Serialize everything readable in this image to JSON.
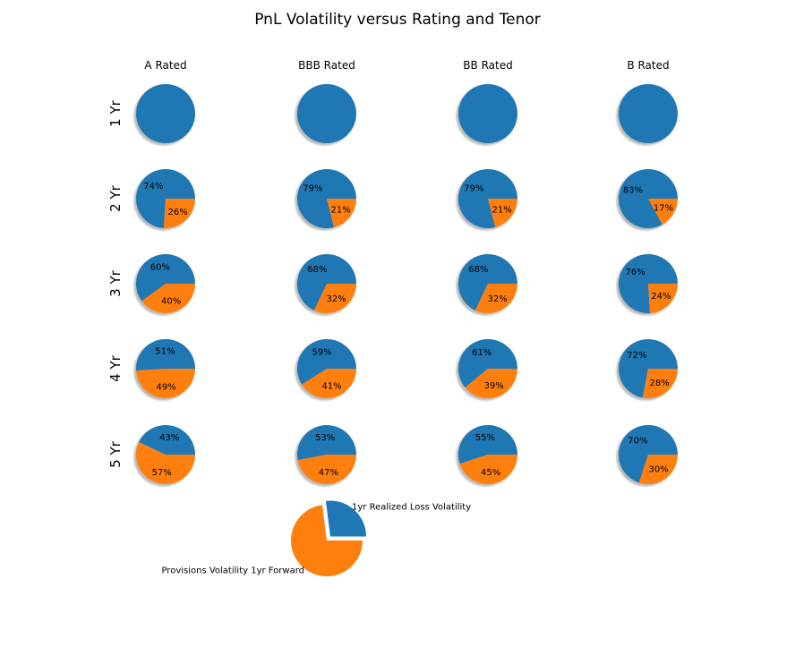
{
  "chart_data": {
    "type": "pie",
    "title": "PnL Volatility versus Rating and Tenor",
    "layout": "grid of pies; columns = credit rating, rows = tenor; plus one legend pie bottom-center",
    "columns": [
      "A Rated",
      "BBB Rated",
      "BB Rated",
      "B Rated"
    ],
    "rows": [
      "1 Yr",
      "2 Yr",
      "3 Yr",
      "4 Yr",
      "5 Yr"
    ],
    "series": [
      "1yr Realized Loss Volatility",
      "Provisions Volatility 1yr Forward"
    ],
    "colors": {
      "realized_loss": "#1f77b4",
      "provisions": "#ff7f0e"
    },
    "autopct_format": "{value}%",
    "cells_pct": [
      [
        [
          100,
          0
        ],
        [
          100,
          0
        ],
        [
          100,
          0
        ],
        [
          100,
          0
        ]
      ],
      [
        [
          74,
          26
        ],
        [
          79,
          21
        ],
        [
          79,
          21
        ],
        [
          83,
          17
        ]
      ],
      [
        [
          60,
          40
        ],
        [
          68,
          32
        ],
        [
          68,
          32
        ],
        [
          76,
          24
        ]
      ],
      [
        [
          51,
          49
        ],
        [
          59,
          41
        ],
        [
          61,
          39
        ],
        [
          72,
          28
        ]
      ],
      [
        [
          43,
          57
        ],
        [
          53,
          47
        ],
        [
          55,
          45
        ],
        [
          70,
          30
        ]
      ]
    ],
    "legend_pie": {
      "values_pct": [
        27,
        73
      ],
      "labels": [
        "1yr Realized Loss Volatility",
        "Provisions Volatility 1yr Forward"
      ],
      "exploded_slice": "1yr Realized Loss Volatility"
    }
  }
}
